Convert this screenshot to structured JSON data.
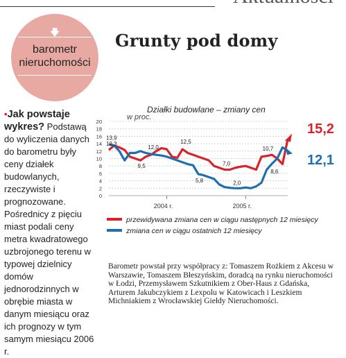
{
  "section": "Aktualności",
  "badge": {
    "icon": "arrow-down-icon",
    "line1": "barometr",
    "line2": "nieruchomości"
  },
  "title": "Grunty pod domy",
  "article": {
    "lead": "Jak powstaje wykres?",
    "body": "Podstawą do wyliczenia danych do barometru były ceny działek budowlanych, rzeczywiste i prognozowane. Pośrednicy z pięciu miast podali ceny metra kwadratowego uzbrojonego terenu w typowej dzielnicy domów jednorodzinnych w obrębie miasta w danym miesiącu oraz ich prognozy w tym samym miesiącu 2006 r."
  },
  "credits": "Barometr powstał przy współpracy z: Tomaszem Rożkiem z Akcesu w Warszawie, Tomaszem Błeszyńskim, doradcą na rynku nieruchomości w Łodzi, Przemysławem Szkutnikiem z Ober-Haus z Gdańska, Arturem Jakubczykiem z Lexpolu w Katowicach i Leszkiem Michniakiem z Wrocławskiej Giełdy Nieruchomości.",
  "chart_data": {
    "type": "line",
    "title": "Działki budowlane – zmiany cen",
    "ylabel": "w proc.",
    "ylim": [
      0,
      20
    ],
    "yticks": [
      "0",
      "2",
      "4",
      "6",
      "8",
      "10",
      "12",
      "14",
      "16",
      "18",
      "20"
    ],
    "x_labels": [
      "2004 r.",
      "2005 r."
    ],
    "grid": true,
    "colors": {
      "forecast": "#d8232a",
      "actual": "#1d6fb0"
    },
    "series": [
      {
        "name": "przewidywana zmiana cen w ciągu następnych 12 miesięcy",
        "values": [
          12.3,
          13.5,
          13.0,
          12.3,
          10.5,
          10.0,
          9.5,
          10.5,
          11.0,
          12.0,
          12.8,
          12.5,
          10.5,
          10.2,
          12.5,
          11.5,
          11.0,
          10.5,
          10.0,
          9.5,
          8.0,
          7.5,
          7.0,
          7.0,
          7.5,
          7.8,
          8.0,
          7.5,
          7.0,
          10.5,
          10.7,
          11.0,
          10.0,
          8.5,
          15.2
        ],
        "labels": [
          "12,3",
          "9,5",
          "12,5",
          "7,0",
          "10,7",
          "15,2"
        ]
      },
      {
        "name": "zmiana cen w ciągu ostatnich 12 miesięcy",
        "values": [
          13.9,
          13.5,
          12.0,
          9.5,
          11.5,
          11.5,
          12.0,
          11.5,
          11.2,
          11.0,
          10.8,
          10.5,
          10.0,
          9.5,
          9.0,
          8.5,
          8.2,
          5.8,
          5.5,
          5.0,
          4.5,
          3.0,
          2.3,
          2.1,
          2.0,
          2.0,
          2.2,
          2.0,
          2.5,
          3.5,
          7.0,
          8.6,
          10.0,
          13.0,
          12.1
        ],
        "labels": [
          "13,9",
          "12,0",
          "5,8",
          "2,0",
          "8,6",
          "12,1"
        ]
      }
    ]
  }
}
